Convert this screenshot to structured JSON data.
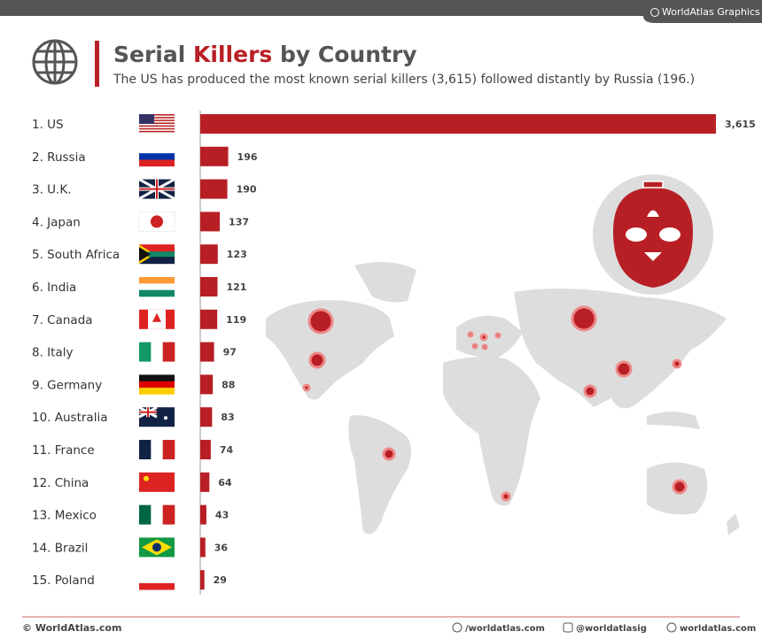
{
  "brand": "WorldAtlas Graphics",
  "chart_data": {
    "type": "bar",
    "title": [
      "Serial",
      "Killers",
      "by Country"
    ],
    "subtitle": "The US has produced the most known serial killers (3,615) followed distantly by Russia (196.)",
    "categories": [
      "1. US",
      "2. Russia",
      "3. U.K.",
      "4. Japan",
      "5. South Africa",
      "6. India",
      "7. Canada",
      "8. Italy",
      "9. Germany",
      "10. Australia",
      "11. France",
      "12. China",
      "13. Mexico",
      "14. Brazil",
      "15. Poland"
    ],
    "values": [
      3615,
      196,
      190,
      137,
      123,
      121,
      119,
      97,
      88,
      83,
      74,
      64,
      43,
      36,
      29
    ],
    "value_labels": [
      "3,615",
      "196",
      "190",
      "137",
      "123",
      "121",
      "119",
      "97",
      "88",
      "83",
      "74",
      "64",
      "43",
      "36",
      "29"
    ],
    "color": "#b81f25"
  },
  "footer": {
    "copyright": "© WorldAtlas.com",
    "facebook": "/worldatlas.com",
    "instagram": "@worldatlasig",
    "website": "worldatlas.com"
  }
}
